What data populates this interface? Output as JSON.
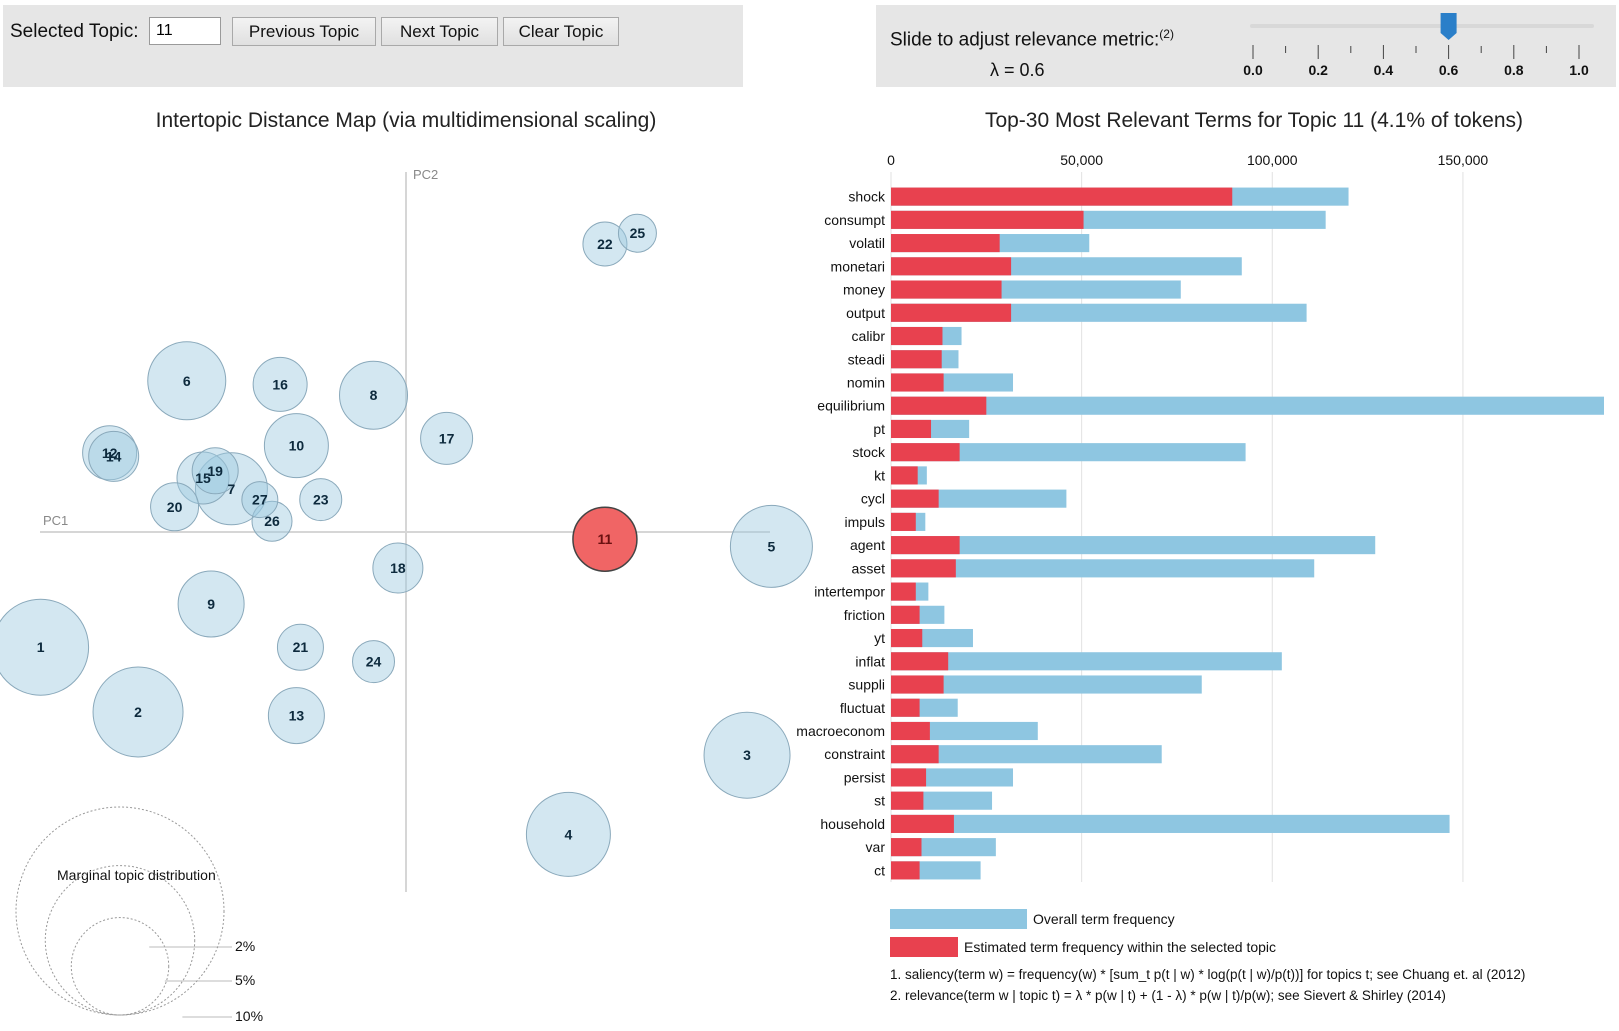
{
  "controls": {
    "selected_topic_label": "Selected Topic:",
    "selected_topic_value": "11",
    "previous_label": "Previous Topic",
    "next_label": "Next Topic",
    "clear_label": "Clear Topic"
  },
  "slider": {
    "label": "Slide to adjust relevance metric:",
    "footnote": "(2)",
    "lambda_text": "λ = 0.6",
    "value": 0.6,
    "min": 0.0,
    "max": 1.0,
    "tick_labels": [
      "0.0",
      "0.2",
      "0.4",
      "0.6",
      "0.8",
      "1.0"
    ]
  },
  "colors": {
    "topic_bubble": "#9ecae1",
    "selected_bubble": "#f06565",
    "overall_bar": "#8ec6e1",
    "topic_bar": "#e8414f",
    "slider_handle": "#2a7fc9"
  },
  "chart_data": [
    {
      "type": "scatter",
      "title": "Intertopic Distance Map (via multidimensional scaling)",
      "xlabel": "PC1",
      "ylabel": "PC2",
      "xlim": [
        -1,
        1
      ],
      "ylim": [
        -1,
        1
      ],
      "selected_topic": "11",
      "points": [
        {
          "topic": "1",
          "x": -0.9,
          "y": -0.32,
          "size": 4.8
        },
        {
          "topic": "2",
          "x": -0.66,
          "y": -0.5,
          "size": 4.5
        },
        {
          "topic": "3",
          "x": 0.84,
          "y": -0.62,
          "size": 4.3
        },
        {
          "topic": "4",
          "x": 0.4,
          "y": -0.84,
          "size": 4.2
        },
        {
          "topic": "5",
          "x": 0.9,
          "y": -0.04,
          "size": 4.1
        },
        {
          "topic": "6",
          "x": -0.54,
          "y": 0.42,
          "size": 3.9
        },
        {
          "topic": "7",
          "x": -0.43,
          "y": 0.12,
          "size": 3.6
        },
        {
          "topic": "8",
          "x": -0.08,
          "y": 0.38,
          "size": 3.4
        },
        {
          "topic": "9",
          "x": -0.48,
          "y": -0.2,
          "size": 3.3
        },
        {
          "topic": "10",
          "x": -0.27,
          "y": 0.24,
          "size": 3.2
        },
        {
          "topic": "11",
          "x": 0.49,
          "y": -0.02,
          "size": 3.2
        },
        {
          "topic": "12",
          "x": -0.73,
          "y": 0.22,
          "size": 2.7
        },
        {
          "topic": "13",
          "x": -0.27,
          "y": -0.51,
          "size": 2.8
        },
        {
          "topic": "14",
          "x": -0.72,
          "y": 0.21,
          "size": 2.5
        },
        {
          "topic": "15",
          "x": -0.5,
          "y": 0.15,
          "size": 2.6
        },
        {
          "topic": "16",
          "x": -0.31,
          "y": 0.41,
          "size": 2.7
        },
        {
          "topic": "17",
          "x": 0.1,
          "y": 0.26,
          "size": 2.6
        },
        {
          "topic": "18",
          "x": -0.02,
          "y": -0.1,
          "size": 2.5
        },
        {
          "topic": "19",
          "x": -0.47,
          "y": 0.17,
          "size": 2.3
        },
        {
          "topic": "20",
          "x": -0.57,
          "y": 0.07,
          "size": 2.4
        },
        {
          "topic": "21",
          "x": -0.26,
          "y": -0.32,
          "size": 2.3
        },
        {
          "topic": "22",
          "x": 0.49,
          "y": 0.8,
          "size": 2.2
        },
        {
          "topic": "23",
          "x": -0.21,
          "y": 0.09,
          "size": 2.1
        },
        {
          "topic": "24",
          "x": -0.08,
          "y": -0.36,
          "size": 2.1
        },
        {
          "topic": "25",
          "x": 0.57,
          "y": 0.83,
          "size": 1.9
        },
        {
          "topic": "26",
          "x": -0.33,
          "y": 0.03,
          "size": 2.0
        },
        {
          "topic": "27",
          "x": -0.36,
          "y": 0.09,
          "size": 1.8
        }
      ],
      "legend": {
        "title": "Marginal topic distribution",
        "labels": [
          "2%",
          "5%",
          "10%"
        ],
        "values": [
          2,
          5,
          10
        ]
      }
    },
    {
      "type": "bar",
      "orientation": "horizontal",
      "title": "Top-30 Most Relevant Terms for Topic 11 (4.1% of tokens)",
      "xlim": [
        0,
        187000
      ],
      "xticks": [
        0,
        50000,
        100000,
        150000
      ],
      "xtick_labels": [
        "0",
        "50,000",
        "100,000",
        "150,000"
      ],
      "categories": [
        "shock",
        "consumpt",
        "volatil",
        "monetari",
        "money",
        "output",
        "calibr",
        "steadi",
        "nomin",
        "equilibrium",
        "pt",
        "stock",
        "kt",
        "cycl",
        "impuls",
        "agent",
        "asset",
        "intertempor",
        "friction",
        "yt",
        "inflat",
        "suppli",
        "fluctuat",
        "macroeconom",
        "constraint",
        "persist",
        "st",
        "household",
        "var",
        "ct"
      ],
      "series": [
        {
          "name": "Overall term frequency",
          "values": [
            120000,
            114000,
            52000,
            92000,
            76000,
            109000,
            18500,
            17700,
            32000,
            187000,
            20500,
            93000,
            9400,
            46000,
            9000,
            127000,
            111000,
            9800,
            14000,
            21500,
            102500,
            81500,
            17500,
            38500,
            71000,
            32000,
            26500,
            146500,
            27500,
            23500
          ]
        },
        {
          "name": "Estimated term frequency within the selected topic",
          "values": [
            89500,
            50500,
            28500,
            31500,
            29000,
            31500,
            13500,
            13300,
            13800,
            25000,
            10500,
            18000,
            7000,
            12500,
            6500,
            18000,
            17000,
            6500,
            7500,
            8200,
            15000,
            13800,
            7500,
            10200,
            12500,
            9200,
            8500,
            16500,
            8000,
            7500
          ]
        }
      ],
      "legend": [
        "Overall term frequency",
        "Estimated term frequency within the selected topic"
      ]
    }
  ],
  "footnotes": [
    "1. saliency(term w) = frequency(w) * [sum_t p(t | w) * log(p(t | w)/p(t))] for topics t; see Chuang et. al (2012)",
    "2. relevance(term w | topic t) = λ * p(w | t) + (1 - λ) * p(w | t)/p(w); see Sievert & Shirley (2014)"
  ]
}
